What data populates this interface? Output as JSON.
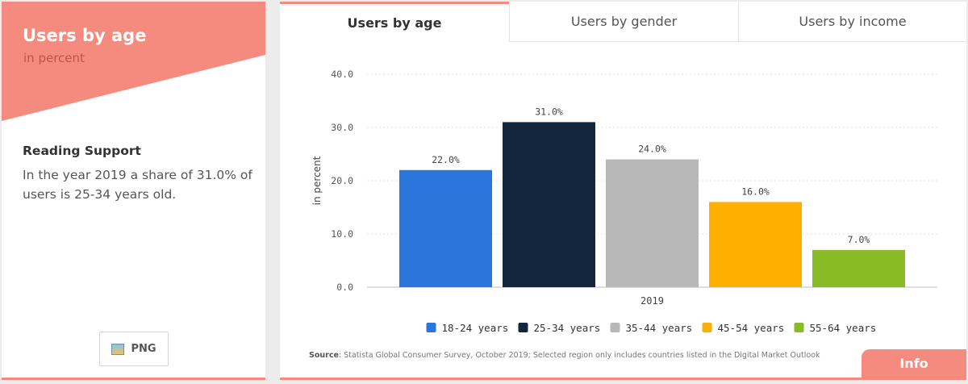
{
  "sidebar": {
    "title": "Users by age",
    "subtitle": "in percent",
    "reading_title": "Reading Support",
    "reading_text": "In the year 2019 a share of 31.0% of users is 25-34 years old.",
    "png_label": "PNG"
  },
  "tabs": [
    {
      "label": "Users by age",
      "active": true
    },
    {
      "label": "Users by gender",
      "active": false
    },
    {
      "label": "Users by income",
      "active": false
    }
  ],
  "source": {
    "prefix": "Source",
    "text": ": Statista Global Consumer Survey, October 2019; Selected region only includes countries listed in the Digital Market Outlook"
  },
  "info_label": "Info",
  "colors": {
    "accent": "#f58b7e",
    "accent_dark": "#b9574c"
  },
  "chart_data": {
    "type": "bar",
    "categories": [
      "2019"
    ],
    "ylabel": "in percent",
    "ylim": [
      0,
      40
    ],
    "yticks": [
      "0.0",
      "10.0",
      "20.0",
      "30.0",
      "40.0"
    ],
    "grid": true,
    "legend_position": "bottom",
    "series": [
      {
        "name": "18-24 years",
        "values": [
          22.0
        ],
        "label": "22.0%",
        "color": "#2b76dd"
      },
      {
        "name": "25-34 years",
        "values": [
          31.0
        ],
        "label": "31.0%",
        "color": "#12263d"
      },
      {
        "name": "35-44 years",
        "values": [
          24.0
        ],
        "label": "24.0%",
        "color": "#b8b8b8"
      },
      {
        "name": "45-54 years",
        "values": [
          16.0
        ],
        "label": "16.0%",
        "color": "#fdb000"
      },
      {
        "name": "55-64 years",
        "values": [
          7.0
        ],
        "label": "7.0%",
        "color": "#88bb25"
      }
    ]
  }
}
